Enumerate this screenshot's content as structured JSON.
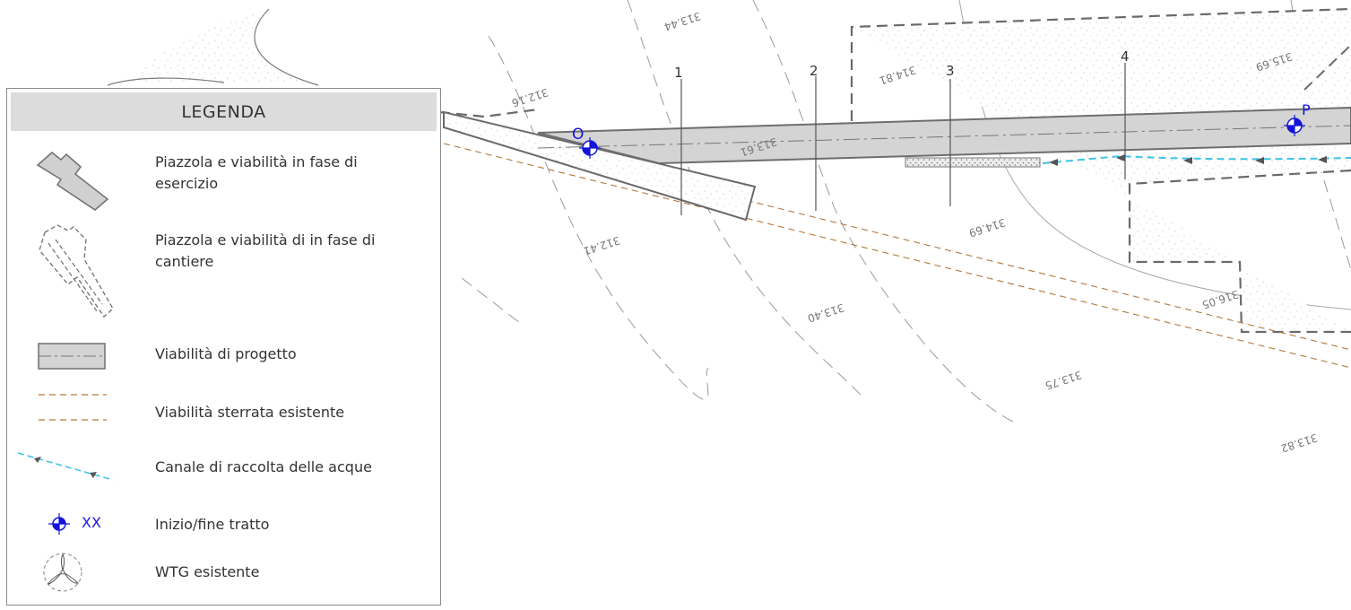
{
  "legend": {
    "title": "LEGENDA",
    "items": [
      {
        "label": "Piazzola e viabilità in fase di esercizio"
      },
      {
        "label": "Piazzola e viabilità di in fase di cantiere"
      },
      {
        "label": "Viabilità di progetto"
      },
      {
        "label": "Viabilità sterrata esistente"
      },
      {
        "label": "Canale di raccolta delle acque"
      },
      {
        "label": "Inizio/fine tratto"
      },
      {
        "label": "WTG esistente"
      }
    ],
    "xx_marker_label": "XX"
  },
  "map": {
    "sections": [
      "1",
      "2",
      "3",
      "4"
    ],
    "endpoints": [
      "O",
      "P"
    ],
    "elevations": [
      "313.44",
      "312.16",
      "314.81",
      "315.69",
      "313.61",
      "312.41",
      "314.69",
      "313.40",
      "316.05",
      "313.75",
      "313.82"
    ]
  },
  "colors": {
    "road_fill": "#d4d4d4",
    "road_edge": "#6e6e6e",
    "dirt_road": "#b5773a",
    "water_channel": "#3ec3e6",
    "marker": "#1414d8"
  }
}
